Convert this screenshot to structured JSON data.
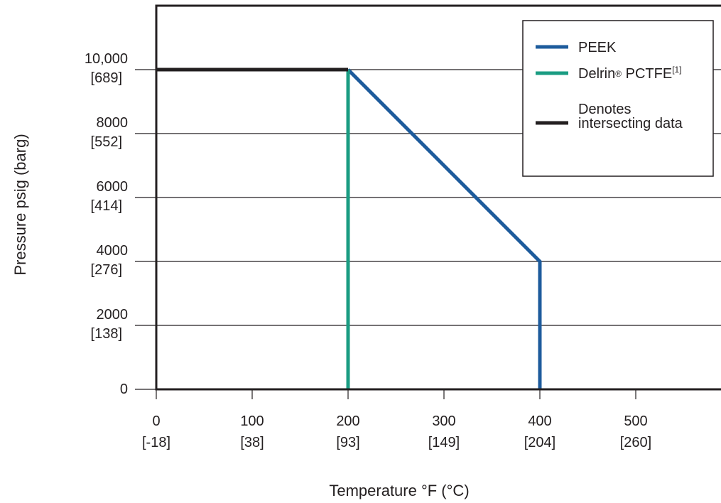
{
  "chart_data": {
    "type": "line",
    "title": "",
    "xlabel": "Temperature °F (°C)",
    "ylabel": "Pressure psig (barg)",
    "xlim": [
      0,
      580
    ],
    "ylim": [
      0,
      12000
    ],
    "grid": {
      "horizontal": true,
      "vertical": false
    },
    "legend_position": "top-right",
    "x_ticks": [
      {
        "value": 0,
        "label": "0",
        "sublabel": "[-18]"
      },
      {
        "value": 100,
        "label": "100",
        "sublabel": "[38]"
      },
      {
        "value": 200,
        "label": "200",
        "sublabel": "[93]"
      },
      {
        "value": 300,
        "label": "300",
        "sublabel": "[149]"
      },
      {
        "value": 400,
        "label": "400",
        "sublabel": "[204]"
      },
      {
        "value": 500,
        "label": "500",
        "sublabel": "[260]"
      }
    ],
    "y_ticks": [
      {
        "value": 0,
        "label": "0",
        "sublabel": ""
      },
      {
        "value": 2000,
        "label": "2000",
        "sublabel": "[138]"
      },
      {
        "value": 4000,
        "label": "4000",
        "sublabel": "[276]"
      },
      {
        "value": 6000,
        "label": "6000",
        "sublabel": "[414]"
      },
      {
        "value": 8000,
        "label": "8000",
        "sublabel": "[552]"
      },
      {
        "value": 10000,
        "label": "10,000",
        "sublabel": "[689]"
      }
    ],
    "series": [
      {
        "name": "PEEK",
        "color": "#1d5b9c",
        "points": [
          [
            200,
            10000
          ],
          [
            400,
            4000
          ],
          [
            400,
            0
          ]
        ]
      },
      {
        "name": "Delrin® PCTFE",
        "name_main": "Delrin",
        "name_reg": "®",
        "name_tail": " PCTFE",
        "name_sup": "[1]",
        "color": "#1a9c82",
        "points": [
          [
            200,
            10000
          ],
          [
            200,
            0
          ]
        ]
      },
      {
        "name": "Denotes intersecting data",
        "name_line1": "Denotes",
        "name_line2": "intersecting data",
        "color": "#231f20",
        "points": [
          [
            0,
            10000
          ],
          [
            200,
            10000
          ]
        ]
      }
    ]
  }
}
